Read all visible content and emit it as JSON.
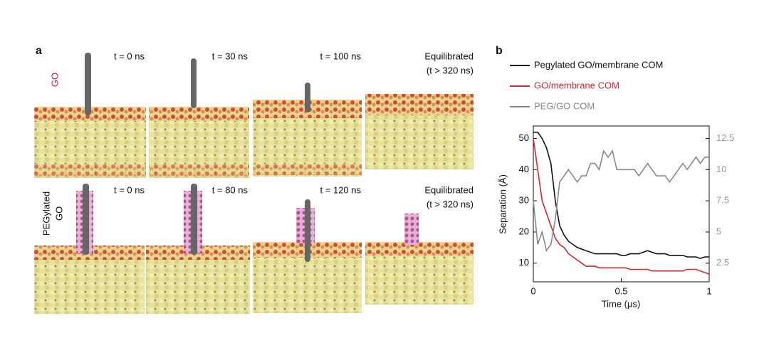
{
  "panel_a": {
    "label": "a",
    "rows": [
      {
        "label": [
          "GO"
        ],
        "snapshots": [
          [
            "t = 0 ns"
          ],
          [
            "t = 30 ns"
          ],
          [
            "t = 100 ns"
          ],
          [
            "Equilibrated",
            "(t > 320 ns)"
          ]
        ]
      },
      {
        "label": [
          "PEGylated",
          "GO"
        ],
        "snapshots": [
          [
            "t = 0 ns"
          ],
          [
            "t = 80 ns"
          ],
          [
            "t = 120 ns"
          ],
          [
            "Equilibrated",
            "(t > 320 ns)"
          ]
        ]
      }
    ]
  },
  "chart_data": {
    "type": "line",
    "label": "b",
    "xlabel": "Time (μs)",
    "ylabel": "Separation (Å)",
    "x": [
      0,
      0.025,
      0.05,
      0.075,
      0.1,
      0.125,
      0.15,
      0.175,
      0.2,
      0.225,
      0.25,
      0.275,
      0.3,
      0.325,
      0.35,
      0.375,
      0.4,
      0.425,
      0.45,
      0.475,
      0.5,
      0.525,
      0.55,
      0.575,
      0.6,
      0.625,
      0.65,
      0.675,
      0.7,
      0.725,
      0.75,
      0.775,
      0.8,
      0.825,
      0.85,
      0.875,
      0.9,
      0.925,
      0.95,
      0.975,
      1
    ],
    "series": [
      {
        "name": "Pegylated GO/membrane COM",
        "color": "#111111",
        "values": [
          52,
          52,
          50,
          47,
          42,
          30,
          22,
          19,
          17,
          16,
          15,
          14.5,
          14,
          13.5,
          13,
          13,
          13,
          13,
          13,
          13,
          12.5,
          12.5,
          13,
          13,
          13,
          13.5,
          14,
          13.5,
          13,
          13,
          13,
          12.5,
          12.5,
          12.5,
          12.5,
          12,
          12,
          12,
          11.5,
          12,
          12
        ]
      },
      {
        "name": "GO/membrane COM",
        "color": "#d9262e",
        "values": [
          50,
          40,
          30,
          26,
          22,
          18,
          16,
          15,
          13,
          12,
          11,
          10,
          9,
          9,
          9,
          8.5,
          8.5,
          8.5,
          8.5,
          8.5,
          8.5,
          8.5,
          8,
          8,
          8,
          8,
          8,
          7.5,
          7.5,
          7.5,
          7.5,
          7.5,
          7.5,
          7.5,
          7.5,
          8,
          8,
          8,
          7.5,
          7,
          6.5
        ]
      },
      {
        "name": "PEG/GO COM",
        "color": "#888888",
        "axis": "y2",
        "values": [
          7.5,
          4,
          5,
          3.5,
          4,
          6,
          9,
          9.5,
          10,
          9.5,
          9,
          9.5,
          9.5,
          10.5,
          10.5,
          10,
          11.5,
          11,
          11.5,
          10,
          10,
          10,
          10,
          10,
          9.5,
          10,
          10.5,
          10,
          9.5,
          9.5,
          9.5,
          9,
          9.5,
          10,
          10.5,
          10,
          10.5,
          11,
          10.5,
          11,
          11
        ]
      }
    ],
    "xlim": [
      0,
      1
    ],
    "xticks": [
      0,
      0.5,
      1
    ],
    "ylim": [
      4,
      54
    ],
    "yticks": [
      10,
      20,
      30,
      40,
      50
    ],
    "y2lim": [
      1,
      13.5
    ],
    "y2ticks": [
      2.5,
      5,
      7.5,
      10,
      12.5
    ]
  }
}
